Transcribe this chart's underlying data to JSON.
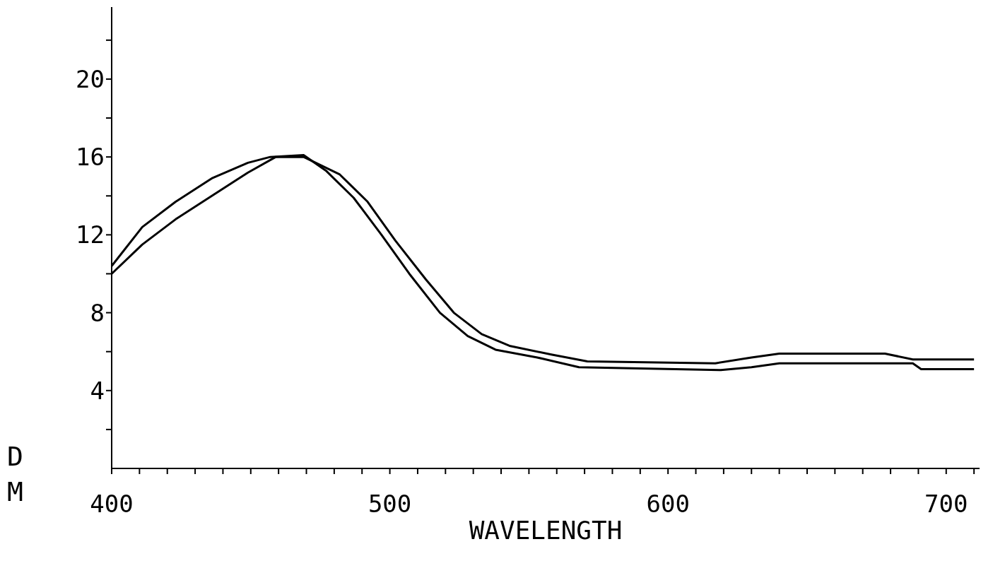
{
  "chart_data": {
    "type": "line",
    "xlabel": "WAVELENGTH",
    "annotations": [
      "D",
      "M"
    ],
    "xlim": [
      400,
      712
    ],
    "ylim": [
      0,
      23.7
    ],
    "xticks": [
      400,
      {
        "value": 410,
        "label": null
      },
      {
        "value": 420,
        "label": null
      },
      {
        "value": 430,
        "label": null
      },
      {
        "value": 440,
        "label": null
      },
      {
        "value": 450,
        "label": null
      },
      {
        "value": 460,
        "label": null
      },
      {
        "value": 470,
        "label": null
      },
      {
        "value": 480,
        "label": null
      },
      {
        "value": 490,
        "label": null
      },
      500,
      {
        "value": 510,
        "label": null
      },
      {
        "value": 520,
        "label": null
      },
      {
        "value": 530,
        "label": null
      },
      {
        "value": 540,
        "label": null
      },
      {
        "value": 550,
        "label": null
      },
      {
        "value": 560,
        "label": null
      },
      {
        "value": 570,
        "label": null
      },
      {
        "value": 580,
        "label": null
      },
      {
        "value": 590,
        "label": null
      },
      600,
      {
        "value": 610,
        "label": null
      },
      {
        "value": 620,
        "label": null
      },
      {
        "value": 630,
        "label": null
      },
      {
        "value": 640,
        "label": null
      },
      {
        "value": 650,
        "label": null
      },
      {
        "value": 660,
        "label": null
      },
      {
        "value": 670,
        "label": null
      },
      {
        "value": 680,
        "label": null
      },
      {
        "value": 690,
        "label": null
      },
      700,
      {
        "value": 710,
        "label": null
      }
    ],
    "yticks": [
      {
        "value": 2,
        "label": null
      },
      4,
      {
        "value": 6,
        "label": null
      },
      8,
      {
        "value": 10,
        "label": null
      },
      12,
      {
        "value": 14,
        "label": null
      },
      16,
      {
        "value": 18,
        "label": null
      },
      20,
      {
        "value": 22,
        "label": null
      }
    ],
    "grid": false,
    "legend": false,
    "marker": "none",
    "line_style": "solid",
    "series": [
      {
        "color": "#000000",
        "x": [
          400,
          411,
          423,
          436,
          449,
          457,
          469,
          477,
          487,
          497,
          507,
          518,
          528,
          538,
          553,
          568,
          619,
          630,
          640,
          688,
          691,
          710
        ],
        "values": [
          10.4,
          12.4,
          13.7,
          14.9,
          15.7,
          16.0,
          16.1,
          15.3,
          13.9,
          12.0,
          10.0,
          8.0,
          6.8,
          6.1,
          5.7,
          5.2,
          5.05,
          5.2,
          5.4,
          5.4,
          5.1,
          5.1
        ]
      },
      {
        "color": "#000000",
        "x": [
          400,
          411,
          423,
          436,
          449,
          459,
          469,
          482,
          492,
          502,
          513,
          523,
          533,
          543,
          558,
          571,
          617,
          630,
          640,
          678,
          688,
          710
        ],
        "values": [
          10.0,
          11.5,
          12.8,
          14.0,
          15.2,
          16.0,
          16.0,
          15.1,
          13.7,
          11.7,
          9.7,
          8.0,
          6.9,
          6.3,
          5.85,
          5.5,
          5.4,
          5.7,
          5.9,
          5.9,
          5.6,
          5.6
        ]
      }
    ]
  }
}
